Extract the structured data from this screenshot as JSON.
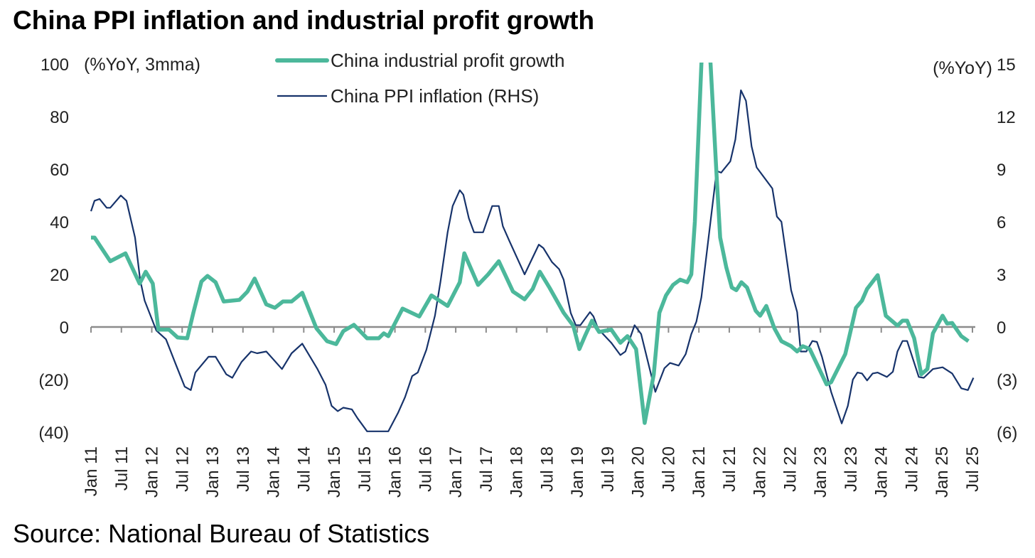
{
  "title": "China PPI inflation and industrial profit growth",
  "source": "Source: National Bureau of Statistics",
  "chart_data": {
    "type": "line",
    "title": "China PPI inflation and industrial profit growth",
    "x_unit": "months since Jan 2011",
    "x_range": [
      0,
      174
    ],
    "x_tick_labels": [
      "Jan 11",
      "Jul 11",
      "Jan 12",
      "Jul 12",
      "Jan 13",
      "Jul 13",
      "Jan 14",
      "Jul 14",
      "Jan 15",
      "Jul 15",
      "Jan 16",
      "Jul 16",
      "Jan 17",
      "Jul 17",
      "Jan 18",
      "Jul 18",
      "Jan 19",
      "Jul 19",
      "Jan 20",
      "Jul 20",
      "Jan 21",
      "Jul 21",
      "Jan 22",
      "Jul 22",
      "Jan 23",
      "Jul 23",
      "Jan 24",
      "Jul 24",
      "Jan 25",
      "Jul 25"
    ],
    "left_axis": {
      "label": "(%YoY, 3mma)",
      "range": [
        -40,
        100
      ],
      "ticks": [
        100,
        80,
        60,
        40,
        20,
        0,
        -20,
        -40
      ],
      "tick_labels": [
        "100",
        "80",
        "60",
        "40",
        "20",
        "0",
        "(20)",
        "(40)"
      ]
    },
    "right_axis": {
      "label": "(%YoY)",
      "range": [
        -6,
        15
      ],
      "ticks": [
        15,
        12,
        9,
        6,
        3,
        0,
        -3,
        -6
      ],
      "tick_labels": [
        "15",
        "12",
        "9",
        "6",
        "3",
        "0",
        "(3)",
        "(6)"
      ]
    },
    "grid": false,
    "legend_position": "top-center",
    "colors": {
      "profit": "#4cb89b",
      "ppi": "#17336b",
      "axis": "#8c8c8c"
    },
    "series": [
      {
        "name": "China industrial profit growth",
        "axis": "left",
        "x": [
          0,
          0.7,
          3.8,
          6.8,
          9.6,
          10.8,
          12.2,
          13.3,
          15.4,
          17.1,
          19,
          20.2,
          21.8,
          23,
          24.6,
          26.2,
          29.3,
          30.9,
          32.3,
          34.6,
          36.3,
          37.9,
          39.6,
          41.7,
          44.5,
          46.6,
          48.4,
          49.8,
          51.9,
          54.5,
          56.8,
          57.8,
          58.7,
          61.5,
          64.8,
          67.2,
          70.4,
          72.8,
          73.7,
          76.4,
          78.4,
          80.5,
          83.3,
          85.6,
          87.2,
          88.6,
          90.5,
          93.3,
          95.2,
          96.4,
          97.5,
          98.9,
          100.3,
          102.7,
          104.5,
          105.9,
          107.6,
          109.3,
          111.1,
          112.2,
          113.5,
          114.9,
          116.3,
          117.7,
          118.5,
          119.2,
          120.5,
          121.3,
          122.3,
          123.5,
          124.2,
          125.4,
          126.5,
          127.4,
          128.4,
          129.5,
          131.2,
          132.1,
          133.3,
          134.9,
          136.3,
          138.2,
          139.4,
          140.5,
          141.9,
          145.2,
          146.1,
          148.9,
          151,
          152.2,
          153.2,
          155.3,
          156.9,
          159.2,
          160.2,
          161.1,
          162.5,
          163.9,
          165.1,
          166.2,
          168.1,
          169,
          170,
          171.8,
          173.2
        ],
        "y": [
          34,
          34,
          25,
          28,
          16.5,
          21,
          16.5,
          -1,
          -1,
          -4,
          -4.3,
          5.4,
          17.3,
          19.4,
          17,
          9.7,
          10.3,
          13.5,
          18.4,
          8.6,
          7.3,
          9.7,
          9.7,
          13,
          -0.5,
          -5.4,
          -6.5,
          -1.6,
          0.8,
          -4.3,
          -4.3,
          -2.4,
          -3.5,
          7,
          4,
          12,
          8,
          17,
          28,
          16,
          20,
          25,
          13.5,
          10.5,
          14.5,
          21,
          15,
          5.4,
          0.5,
          -8.4,
          -3.5,
          2.4,
          -1.9,
          -1,
          -6,
          -3.5,
          -8.4,
          -36.5,
          -18,
          5.4,
          12,
          16,
          18,
          17,
          20,
          40,
          100,
          125,
          100,
          57.5,
          34,
          22.7,
          15,
          14,
          17,
          15,
          6.2,
          4.3,
          8,
          -0.5,
          -5.4,
          -7.3,
          -9.3,
          -7.3,
          -8.4,
          -21.8,
          -21,
          -10.3,
          7.3,
          10,
          14.5,
          19.7,
          4.3,
          0.5,
          2.4,
          2.4,
          -4.3,
          -18,
          -16,
          -2.4,
          4.3,
          1.3,
          1.5,
          -3.5,
          -5.4
        ]
      },
      {
        "name": "China PPI inflation (RHS)",
        "axis": "right",
        "x": [
          0,
          0.7,
          1.7,
          3.1,
          3.8,
          5.9,
          7,
          8.7,
          9.7,
          10.6,
          12.9,
          14.8,
          16.7,
          18.5,
          19.7,
          20.6,
          23.2,
          24.6,
          26.7,
          27.9,
          29.7,
          31.6,
          32.8,
          34.6,
          37.7,
          39.6,
          41.7,
          44.7,
          46.3,
          47.5,
          48.7,
          49.8,
          51.5,
          52.6,
          54.5,
          58.7,
          60.6,
          62,
          63.4,
          64.5,
          66.2,
          67.9,
          69,
          70.4,
          71.4,
          72.8,
          73.5,
          74.6,
          75.6,
          77.4,
          79.2,
          80.5,
          81.3,
          82.6,
          85.6,
          88.4,
          89.3,
          91,
          92.4,
          93.3,
          94.7,
          95.7,
          96.6,
          98.5,
          99.2,
          100.1,
          102.7,
          104.5,
          105.5,
          107.3,
          108.6,
          111.4,
          113.2,
          114.3,
          116,
          117.4,
          118.5,
          119.5,
          120.5,
          123.5,
          124.4,
          126.2,
          127.2,
          128.3,
          129.3,
          130.4,
          131.4,
          134.5,
          135.4,
          136.3,
          138.2,
          139.4,
          140.1,
          141.2,
          142.4,
          143.3,
          144.3,
          146.1,
          148.2,
          149.4,
          150.4,
          151.3,
          152.2,
          153.2,
          154.3,
          155.3,
          157.1,
          158.3,
          159.2,
          160.2,
          161.1,
          163.4,
          164.4,
          166.2,
          168.1,
          170,
          171.8,
          173.1,
          174.2
        ],
        "y": [
          6.6,
          7.2,
          7.3,
          6.8,
          6.8,
          7.5,
          7.2,
          5.1,
          2.7,
          1.5,
          -0.2,
          -0.7,
          -2.1,
          -3.4,
          -3.6,
          -2.6,
          -1.7,
          -1.7,
          -2.7,
          -2.9,
          -2,
          -1.4,
          -1.5,
          -1.4,
          -2.4,
          -1.5,
          -0.95,
          -2.4,
          -3.3,
          -4.5,
          -4.8,
          -4.6,
          -4.7,
          -5.2,
          -5.95,
          -5.95,
          -4.9,
          -4,
          -2.8,
          -2.6,
          -1.3,
          0.65,
          2.6,
          5.4,
          6.9,
          7.8,
          7.55,
          6.2,
          5.4,
          5.4,
          6.9,
          6.9,
          5.75,
          4.9,
          3,
          4.7,
          4.5,
          3.7,
          3.3,
          2.7,
          0.8,
          0.1,
          0.1,
          0.85,
          0.6,
          -0.1,
          -0.9,
          -1.6,
          -1.4,
          0.1,
          -0.4,
          -3.7,
          -2.35,
          -2.05,
          -2.2,
          -1.55,
          -0.4,
          0.3,
          1.7,
          8.9,
          8.8,
          9.45,
          10.7,
          13.5,
          12.9,
          10.3,
          9.1,
          7.9,
          6.3,
          6.0,
          2.1,
          0.85,
          -1.4,
          -1.4,
          -0.8,
          -0.85,
          -1.7,
          -3.7,
          -5.5,
          -4.5,
          -3,
          -2.6,
          -2.65,
          -3.05,
          -2.65,
          -2.6,
          -2.85,
          -2.55,
          -1.4,
          -0.8,
          -0.8,
          -2.85,
          -2.9,
          -2.4,
          -2.3,
          -2.65,
          -3.5,
          -3.6,
          -2.9
        ]
      }
    ]
  }
}
